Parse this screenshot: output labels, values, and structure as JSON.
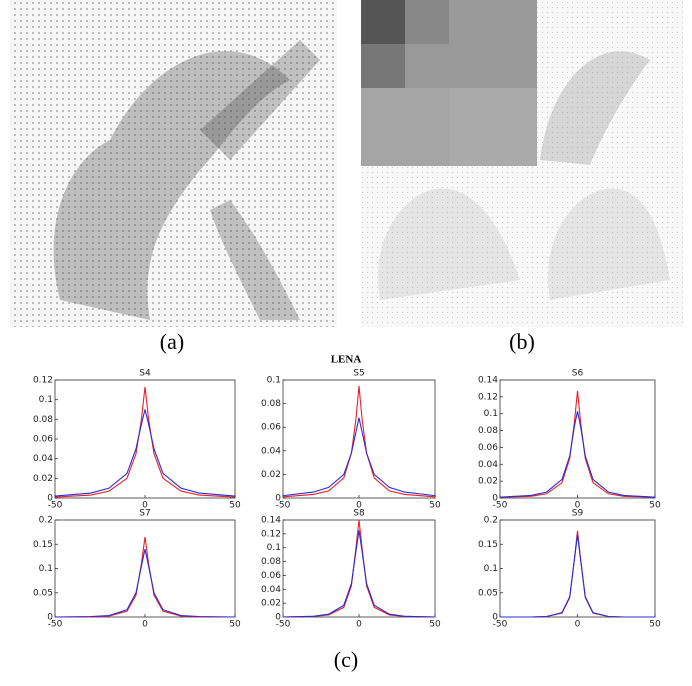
{
  "figure": {
    "captions": [
      "(a)",
      "(b)",
      "(c)"
    ],
    "title": "LENA"
  },
  "chart_data": [
    {
      "type": "line",
      "title": "S4",
      "x": [
        -50,
        -30,
        -20,
        -10,
        -5,
        -2,
        0,
        2,
        5,
        10,
        20,
        30,
        50
      ],
      "xlim": [
        -50,
        50
      ],
      "xticks": [
        -50,
        0,
        50
      ],
      "ylim": [
        0,
        0.12
      ],
      "yticks": [
        0,
        0.02,
        0.04,
        0.06,
        0.08,
        0.1,
        0.12
      ],
      "series": [
        {
          "color": "#e8202a",
          "values": [
            0.001,
            0.003,
            0.007,
            0.02,
            0.045,
            0.08,
            0.113,
            0.08,
            0.045,
            0.02,
            0.007,
            0.003,
            0.001
          ]
        },
        {
          "color": "#2b2bd8",
          "values": [
            0.002,
            0.005,
            0.01,
            0.025,
            0.05,
            0.075,
            0.09,
            0.075,
            0.05,
            0.025,
            0.01,
            0.005,
            0.002
          ]
        }
      ]
    },
    {
      "type": "line",
      "title": "S5",
      "x": [
        -50,
        -30,
        -20,
        -10,
        -5,
        -2,
        0,
        2,
        5,
        10,
        20,
        30,
        50
      ],
      "xlim": [
        -50,
        50
      ],
      "xticks": [
        -50,
        0,
        50
      ],
      "ylim": [
        0,
        0.1
      ],
      "yticks": [
        0,
        0.02,
        0.04,
        0.06,
        0.08,
        0.1
      ],
      "series": [
        {
          "color": "#e8202a",
          "values": [
            0.001,
            0.003,
            0.006,
            0.017,
            0.038,
            0.067,
            0.095,
            0.067,
            0.038,
            0.017,
            0.006,
            0.003,
            0.001
          ]
        },
        {
          "color": "#2b2bd8",
          "values": [
            0.002,
            0.005,
            0.009,
            0.02,
            0.038,
            0.056,
            0.068,
            0.056,
            0.038,
            0.02,
            0.009,
            0.005,
            0.002
          ]
        }
      ]
    },
    {
      "type": "line",
      "title": "S6",
      "x": [
        -50,
        -30,
        -20,
        -10,
        -5,
        -2,
        0,
        2,
        5,
        10,
        20,
        30,
        50
      ],
      "xlim": [
        -50,
        50
      ],
      "xticks": [
        -50,
        0,
        50
      ],
      "ylim": [
        0,
        0.14
      ],
      "yticks": [
        0,
        0.02,
        0.04,
        0.06,
        0.08,
        0.1,
        0.12,
        0.14
      ],
      "series": [
        {
          "color": "#e8202a",
          "values": [
            0.001,
            0.002,
            0.005,
            0.018,
            0.047,
            0.09,
            0.127,
            0.09,
            0.047,
            0.018,
            0.005,
            0.002,
            0.001
          ]
        },
        {
          "color": "#2b2bd8",
          "values": [
            0.001,
            0.003,
            0.007,
            0.022,
            0.05,
            0.085,
            0.103,
            0.085,
            0.05,
            0.022,
            0.007,
            0.003,
            0.001
          ]
        }
      ]
    },
    {
      "type": "line",
      "title": "S7",
      "x": [
        -50,
        -30,
        -20,
        -10,
        -5,
        -2,
        0,
        2,
        5,
        10,
        20,
        30,
        50
      ],
      "xlim": [
        -50,
        50
      ],
      "xticks": [
        -50,
        0,
        50
      ],
      "ylim": [
        0,
        0.2
      ],
      "yticks": [
        0,
        0.05,
        0.1,
        0.15,
        0.2
      ],
      "series": [
        {
          "color": "#e8202a",
          "values": [
            0,
            0,
            0.002,
            0.012,
            0.045,
            0.11,
            0.165,
            0.11,
            0.045,
            0.012,
            0.002,
            0,
            0
          ]
        },
        {
          "color": "#2b2bd8",
          "values": [
            0,
            0.001,
            0.003,
            0.015,
            0.05,
            0.105,
            0.14,
            0.105,
            0.05,
            0.015,
            0.003,
            0.001,
            0
          ]
        }
      ]
    },
    {
      "type": "line",
      "title": "S8",
      "x": [
        -50,
        -30,
        -20,
        -10,
        -5,
        -2,
        0,
        2,
        5,
        10,
        20,
        30,
        50
      ],
      "xlim": [
        -50,
        50
      ],
      "xticks": [
        -50,
        0,
        50
      ],
      "ylim": [
        0,
        0.14
      ],
      "yticks": [
        0,
        0.02,
        0.04,
        0.06,
        0.08,
        0.1,
        0.12,
        0.14
      ],
      "series": [
        {
          "color": "#e8202a",
          "values": [
            0,
            0.001,
            0.003,
            0.014,
            0.045,
            0.1,
            0.14,
            0.1,
            0.045,
            0.014,
            0.003,
            0.001,
            0
          ]
        },
        {
          "color": "#2b2bd8",
          "values": [
            0,
            0.001,
            0.004,
            0.017,
            0.048,
            0.095,
            0.125,
            0.095,
            0.048,
            0.017,
            0.004,
            0.001,
            0
          ]
        }
      ]
    },
    {
      "type": "line",
      "title": "S9",
      "x": [
        -50,
        -30,
        -20,
        -10,
        -5,
        -2,
        0,
        2,
        5,
        10,
        20,
        30,
        50
      ],
      "xlim": [
        -50,
        50
      ],
      "xticks": [
        -50,
        0,
        50
      ],
      "ylim": [
        0,
        0.2
      ],
      "yticks": [
        0,
        0.05,
        0.1,
        0.15,
        0.2
      ],
      "series": [
        {
          "color": "#e8202a",
          "values": [
            0,
            0,
            0.001,
            0.008,
            0.04,
            0.12,
            0.178,
            0.12,
            0.04,
            0.008,
            0.001,
            0,
            0
          ]
        },
        {
          "color": "#2b2bd8",
          "values": [
            0,
            0,
            0.001,
            0.009,
            0.042,
            0.118,
            0.17,
            0.118,
            0.042,
            0.009,
            0.001,
            0,
            0
          ]
        }
      ]
    }
  ]
}
